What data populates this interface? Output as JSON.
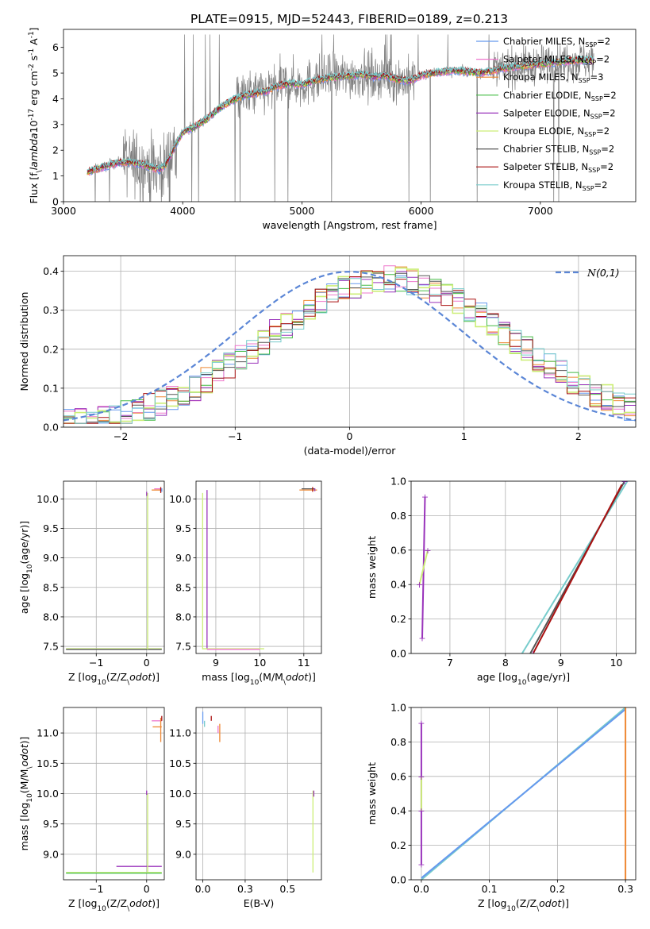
{
  "figure_title": "PLATE=0915, MJD=52443, FIBERID=0189, z=0.213",
  "colors": {
    "chabrier_miles": "#6699ee",
    "salpeter_miles": "#ee77cc",
    "kroupa_miles": "#ee8833",
    "chabrier_elodie": "#44bb44",
    "salpeter_elodie": "#9933bb",
    "kroupa_elodie": "#ccee77",
    "chabrier_stelib": "#555555",
    "salpeter_stelib": "#aa1111",
    "kroupa_stelib": "#77cccc",
    "data": "#808080",
    "normal": "#5b86d6",
    "grid": "#b0b0b0"
  },
  "chart_data": [
    {
      "id": "spectrum",
      "type": "line",
      "xlabel": "wavelength [Angstrom, rest frame]",
      "ylabel": "Flux [f$_\\lambda$10$^{-17}$ erg cm$^{-2}$ s$^{-1}$ A$^{-1}$]",
      "xlim": [
        3000,
        7800
      ],
      "ylim": [
        0,
        6.7
      ],
      "xticks": [
        3000,
        4000,
        5000,
        6000,
        7000
      ],
      "yticks": [
        0,
        1,
        2,
        3,
        4,
        5,
        6
      ],
      "legend_placement": "right",
      "legend": [
        {
          "label": "Chabrier MILES, N",
          "sub": "SSP",
          "suffix": "=2",
          "color": "#6699ee"
        },
        {
          "label": "Salpeter MILES, N",
          "sub": "SSP",
          "suffix": "=2",
          "color": "#ee77cc"
        },
        {
          "label": "Kroupa MILES, N",
          "sub": "SSP",
          "suffix": "=3",
          "color": "#ee8833"
        },
        {
          "label": "Chabrier ELODIE, N",
          "sub": "SSP",
          "suffix": "=2",
          "color": "#44bb44"
        },
        {
          "label": "Salpeter ELODIE, N",
          "sub": "SSP",
          "suffix": "=2",
          "color": "#9933bb"
        },
        {
          "label": "Kroupa ELODIE, N",
          "sub": "SSP",
          "suffix": "=2",
          "color": "#ccee77"
        },
        {
          "label": "Chabrier STELIB, N",
          "sub": "SSP",
          "suffix": "=2",
          "color": "#555555"
        },
        {
          "label": "Salpeter STELIB, N",
          "sub": "SSP",
          "suffix": "=2",
          "color": "#aa1111"
        },
        {
          "label": "Kroupa STELIB, N",
          "sub": "SSP",
          "suffix": "=2",
          "color": "#77cccc"
        }
      ],
      "model_continuum": {
        "x": [
          3200,
          3300,
          3400,
          3500,
          3600,
          3700,
          3800,
          3850,
          3900,
          3950,
          4000,
          4100,
          4200,
          4300,
          4400,
          4500,
          4600,
          4700,
          4800,
          4900,
          5000,
          5100,
          5200,
          5300,
          5400,
          5500,
          5600,
          5700,
          5800,
          5900,
          6000,
          6100,
          6200,
          6300,
          6400,
          6500,
          6600,
          6700,
          6800,
          6900,
          7000,
          7100,
          7200,
          7300,
          7400
        ],
        "y": [
          1.15,
          1.3,
          1.45,
          1.55,
          1.5,
          1.4,
          1.25,
          1.4,
          1.8,
          2.3,
          2.7,
          2.9,
          3.2,
          3.6,
          3.9,
          4.1,
          4.2,
          4.3,
          4.5,
          4.6,
          4.55,
          4.7,
          4.8,
          4.85,
          4.9,
          4.95,
          4.85,
          4.9,
          4.75,
          4.7,
          4.9,
          5.0,
          5.05,
          5.1,
          5.05,
          5.0,
          5.1,
          5.2,
          5.25,
          5.3,
          5.35,
          5.4,
          5.45,
          5.5,
          5.5
        ]
      },
      "data_range": [
        3200,
        7450
      ]
    },
    {
      "id": "residuals",
      "type": "line",
      "xlabel": "(data-model)/error",
      "ylabel": "Normed distribution",
      "xlim": [
        -2.5,
        2.5
      ],
      "ylim": [
        0,
        0.44
      ],
      "xticks": [
        -2,
        -1,
        0,
        1,
        2
      ],
      "yticks": [
        0.0,
        0.1,
        0.2,
        0.3,
        0.4
      ],
      "legend": "$\\mathcal{N}(0,1)$",
      "legend_placement": "top-right",
      "bin_width": 0.1
    },
    {
      "id": "age_vs_Z",
      "type": "scatter",
      "xlabel": "Z [log$_{10}$(Z/Z$_\\odot$)]",
      "ylabel": "age  [log$_{10}$(age/yr)]",
      "xlim": [
        -1.65,
        0.35
      ],
      "ylim": [
        7.38,
        10.3
      ],
      "xticks": [
        -1,
        0
      ],
      "yticks": [
        7.5,
        8.0,
        8.5,
        9.0,
        9.5,
        10.0
      ]
    },
    {
      "id": "age_vs_mass",
      "type": "scatter",
      "xlabel": "mass [log$_{10}$(M/M$_\\odot$)]",
      "xlim": [
        8.55,
        11.4
      ],
      "ylim": [
        7.38,
        10.3
      ],
      "xticks": [
        9,
        10,
        11
      ],
      "yticks": [
        7.5,
        8.0,
        8.5,
        9.0,
        9.5,
        10.0
      ]
    },
    {
      "id": "weight_vs_age",
      "type": "line",
      "xlabel": "age  [log$_{10}$(age/yr)]",
      "ylabel": "mass weight",
      "xlim": [
        6.3,
        10.35
      ],
      "ylim": [
        0,
        1
      ],
      "xticks": [
        7,
        8,
        9,
        10
      ],
      "yticks": [
        0.0,
        0.2,
        0.4,
        0.6,
        0.8,
        1.0
      ]
    },
    {
      "id": "mass_vs_Z",
      "type": "scatter",
      "xlabel": "Z [log$_{10}$(Z/Z$_\\odot$)]",
      "ylabel": "mass [log$_{10}$(M/M$_\\odot$)]",
      "xlim": [
        -1.65,
        0.35
      ],
      "ylim": [
        8.58,
        11.42
      ],
      "xticks": [
        -1,
        0
      ],
      "yticks": [
        9.0,
        9.5,
        10.0,
        10.5,
        11.0
      ]
    },
    {
      "id": "mass_vs_ebv",
      "type": "scatter",
      "xlabel": "E(B-V)",
      "xlim": [
        -0.04,
        0.7
      ],
      "ylim": [
        8.58,
        11.42
      ],
      "xticks": [
        0.0,
        0.25,
        0.5
      ],
      "yticks": [
        9.0,
        9.5,
        10.0,
        10.5,
        11.0
      ]
    },
    {
      "id": "weight_vs_Z",
      "type": "line",
      "xlabel": "Z [log$_{10}$(Z/Z$_\\odot$)]",
      "ylabel": "mass weight",
      "xlim": [
        -0.015,
        0.315
      ],
      "ylim": [
        0,
        1
      ],
      "xticks": [
        0.0,
        0.1,
        0.2,
        0.3
      ],
      "yticks": [
        0.0,
        0.2,
        0.4,
        0.6,
        0.8,
        1.0
      ]
    }
  ]
}
